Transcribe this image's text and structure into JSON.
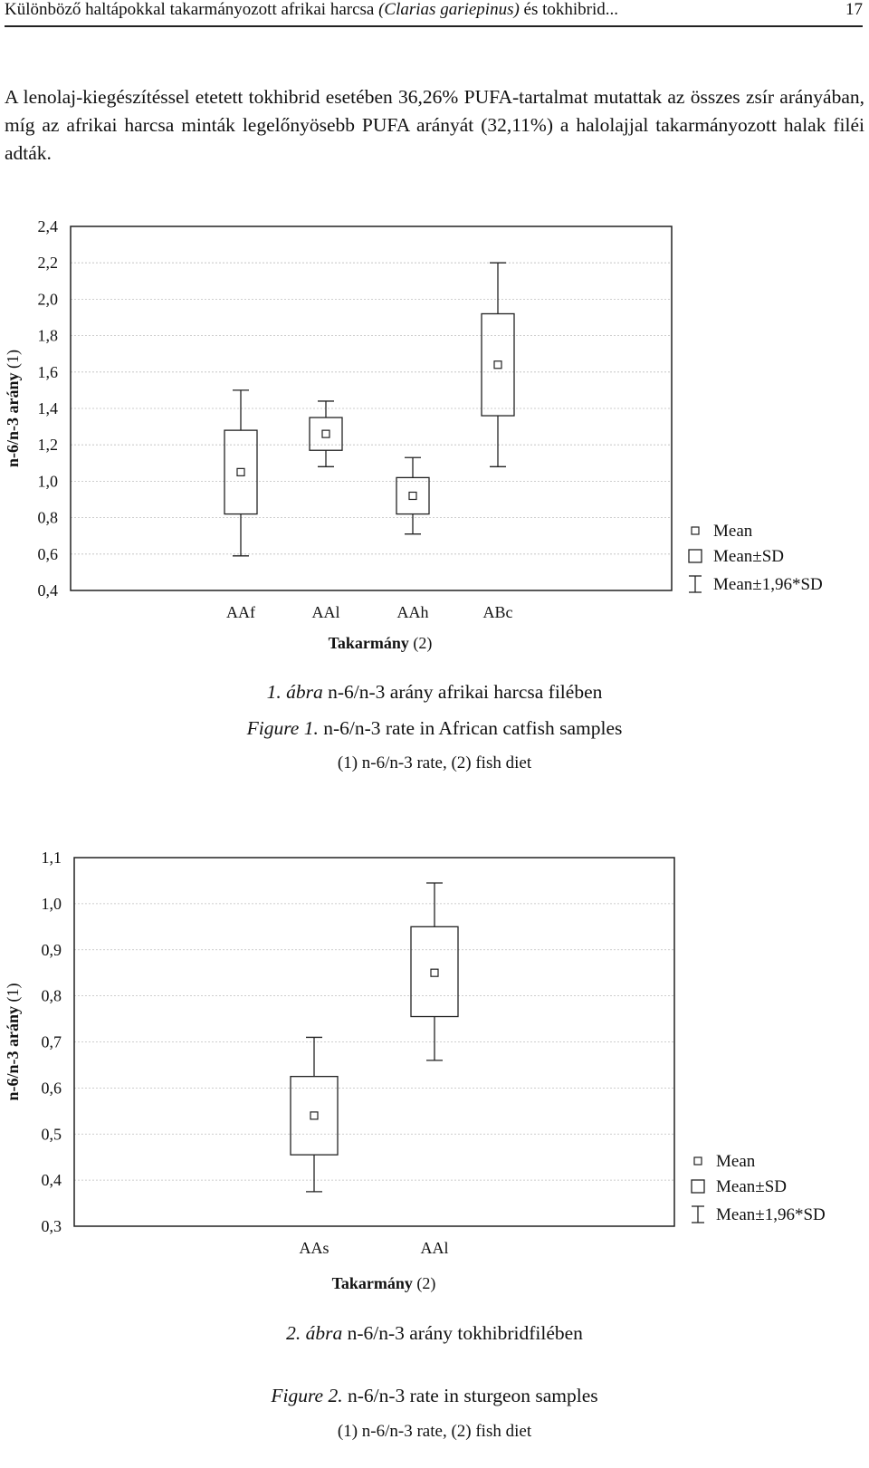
{
  "header": {
    "title_pre": "Különböző haltápokkal takarmányozott afrikai harcsa ",
    "title_italic": "(Clarias gariepinus)",
    "title_post": " és tokhibrid...",
    "page_number": "17"
  },
  "body_text": "A lenolaj-kiegészítéssel etetett tokhibrid esetében 36,26% PUFA-tartalmat mutattak az összes zsír arányában, míg az afrikai harcsa minták legelőnyösebb PUFA arányát (32,11%) a halolajjal takarmányozott halak filéi adták.",
  "chart_data": [
    {
      "type": "boxplot",
      "ylabel_bold": "n-6/n-3 arány",
      "ylabel_rest": " (1)",
      "xlabel_bold": "Takarmány",
      "xlabel_rest": " (2)",
      "ylim": [
        0.4,
        2.4
      ],
      "yticks": [
        "2,4",
        "2,2",
        "2,0",
        "1,8",
        "1,6",
        "1,4",
        "1,2",
        "1,0",
        "0,8",
        "0,6",
        "0,4"
      ],
      "categories": [
        "AAf",
        "AAl",
        "AAh",
        "ABc"
      ],
      "series": [
        {
          "mean": [
            1.05,
            1.26,
            0.92,
            1.64
          ],
          "sd_low": [
            0.82,
            1.17,
            0.82,
            1.36
          ],
          "sd_high": [
            1.28,
            1.35,
            1.02,
            1.92
          ],
          "ci_low": [
            0.59,
            1.08,
            0.71,
            1.08
          ],
          "ci_high": [
            1.5,
            1.44,
            1.13,
            2.2
          ]
        }
      ],
      "grid": true,
      "legend": [
        "Mean",
        "Mean±SD",
        "Mean±1,96*SD"
      ],
      "legend_position": "right"
    },
    {
      "type": "boxplot",
      "ylabel_bold": "n-6/n-3 arány",
      "ylabel_rest": " (1)",
      "xlabel_bold": "Takarmány",
      "xlabel_rest": " (2)",
      "ylim": [
        0.3,
        1.1
      ],
      "yticks": [
        "1,1",
        "1,0",
        "0,9",
        "0,8",
        "0,7",
        "0,6",
        "0,5",
        "0,4",
        "0,3"
      ],
      "categories": [
        "AAs",
        "AAl"
      ],
      "series": [
        {
          "mean": [
            0.54,
            0.85
          ],
          "sd_low": [
            0.455,
            0.755
          ],
          "sd_high": [
            0.625,
            0.95
          ],
          "ci_low": [
            0.375,
            0.66
          ],
          "ci_high": [
            0.71,
            1.045
          ]
        }
      ],
      "grid": true,
      "legend": [
        "Mean",
        "Mean±SD",
        "Mean±1,96*SD"
      ],
      "legend_position": "right"
    }
  ],
  "figure1": {
    "caption_label": "1. ábra",
    "caption_hu": " n-6/n-3 arány afrikai harcsa filében",
    "caption_en_label": "Figure 1.",
    "caption_en": " n-6/n-3 rate in African catfish samples",
    "caption_note": "(1) n-6/n-3 rate, (2) fish diet"
  },
  "figure2": {
    "caption_label": "2. ábra",
    "caption_hu": " n-6/n-3 arány tokhibridfilében",
    "caption_en_label": "Figure 2.",
    "caption_en": " n-6/n-3 rate in sturgeon samples",
    "caption_note": "(1) n-6/n-3 rate, (2) fish diet"
  }
}
